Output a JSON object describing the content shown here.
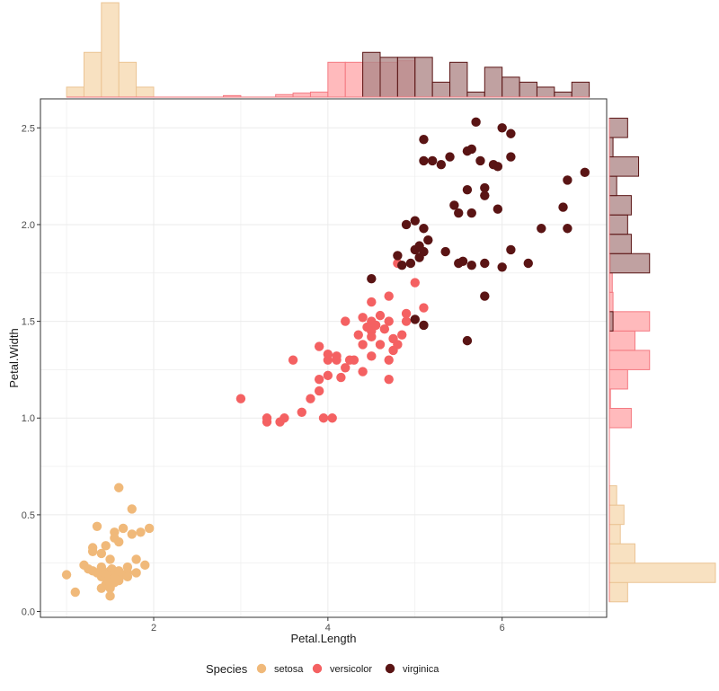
{
  "chart_data": {
    "type": "scatter",
    "title": "",
    "xlabel": "Petal.Length",
    "ylabel": "Petal.Width",
    "xlim": [
      0.7,
      7.2
    ],
    "ylim": [
      -0.03,
      2.65
    ],
    "x_ticks": [
      2,
      4,
      6
    ],
    "y_ticks": [
      0.0,
      0.5,
      1.0,
      1.5,
      2.0,
      2.5
    ],
    "x_tick_labels": [
      "2",
      "4",
      "6"
    ],
    "y_tick_labels": [
      "0.0",
      "0.5",
      "1.0",
      "1.5",
      "2.0",
      "2.5"
    ],
    "grid": true,
    "legend": {
      "title": "Species",
      "position": "bottom",
      "entries": [
        "setosa",
        "versicolor",
        "virginica"
      ]
    },
    "colors": {
      "setosa": "#F0B97A",
      "versicolor": "#F46162",
      "virginica": "#5A1414",
      "setosa_hist_fill": "#F8DFBE",
      "setosa_hist_edge": "#EBC494",
      "versicolor_hist_fill": "#FFB2B5",
      "versicolor_hist_edge": "#F47A82",
      "virginica_hist_fill": "#B08A8A",
      "virginica_hist_edge": "#5A1414"
    },
    "series": [
      {
        "name": "setosa",
        "points": [
          [
            1.0,
            0.19
          ],
          [
            1.1,
            0.1
          ],
          [
            1.2,
            0.24
          ],
          [
            1.25,
            0.22
          ],
          [
            1.3,
            0.21
          ],
          [
            1.3,
            0.33
          ],
          [
            1.3,
            0.31
          ],
          [
            1.35,
            0.44
          ],
          [
            1.35,
            0.2
          ],
          [
            1.4,
            0.3
          ],
          [
            1.4,
            0.22
          ],
          [
            1.4,
            0.18
          ],
          [
            1.4,
            0.12
          ],
          [
            1.4,
            0.23
          ],
          [
            1.45,
            0.34
          ],
          [
            1.45,
            0.18
          ],
          [
            1.45,
            0.14
          ],
          [
            1.45,
            0.2
          ],
          [
            1.5,
            0.12
          ],
          [
            1.5,
            0.18
          ],
          [
            1.5,
            0.13
          ],
          [
            1.5,
            0.21
          ],
          [
            1.5,
            0.27
          ],
          [
            1.5,
            0.16
          ],
          [
            1.5,
            0.08
          ],
          [
            1.5,
            0.13
          ],
          [
            1.52,
            0.22
          ],
          [
            1.55,
            0.41
          ],
          [
            1.55,
            0.2
          ],
          [
            1.55,
            0.15
          ],
          [
            1.55,
            0.38
          ],
          [
            1.6,
            0.18
          ],
          [
            1.6,
            0.21
          ],
          [
            1.6,
            0.16
          ],
          [
            1.6,
            0.64
          ],
          [
            1.6,
            0.36
          ],
          [
            1.6,
            0.2
          ],
          [
            1.65,
            0.43
          ],
          [
            1.65,
            0.19
          ],
          [
            1.7,
            0.23
          ],
          [
            1.7,
            0.2
          ],
          [
            1.7,
            0.18
          ],
          [
            1.75,
            0.53
          ],
          [
            1.75,
            0.4
          ],
          [
            1.8,
            0.27
          ],
          [
            1.8,
            0.2
          ],
          [
            1.85,
            0.41
          ],
          [
            1.9,
            0.24
          ],
          [
            1.95,
            0.43
          ],
          [
            1.55,
            0.17
          ]
        ]
      },
      {
        "name": "versicolor",
        "points": [
          [
            3.0,
            1.1
          ],
          [
            3.3,
            0.98
          ],
          [
            3.3,
            1.0
          ],
          [
            3.45,
            0.98
          ],
          [
            3.5,
            1.0
          ],
          [
            3.6,
            1.3
          ],
          [
            3.7,
            1.03
          ],
          [
            3.8,
            1.1
          ],
          [
            3.9,
            1.14
          ],
          [
            3.9,
            1.2
          ],
          [
            3.9,
            1.37
          ],
          [
            3.95,
            1.0
          ],
          [
            4.0,
            1.22
          ],
          [
            4.0,
            1.3
          ],
          [
            4.0,
            1.33
          ],
          [
            4.05,
            1.0
          ],
          [
            4.1,
            1.3
          ],
          [
            4.1,
            1.32
          ],
          [
            4.15,
            1.21
          ],
          [
            4.2,
            1.26
          ],
          [
            4.2,
            1.5
          ],
          [
            4.25,
            1.3
          ],
          [
            4.3,
            1.3
          ],
          [
            4.35,
            1.43
          ],
          [
            4.4,
            1.24
          ],
          [
            4.4,
            1.38
          ],
          [
            4.4,
            1.52
          ],
          [
            4.5,
            1.32
          ],
          [
            4.5,
            1.45
          ],
          [
            4.5,
            1.5
          ],
          [
            4.5,
            1.6
          ],
          [
            4.5,
            1.42
          ],
          [
            4.55,
            1.48
          ],
          [
            4.6,
            1.53
          ],
          [
            4.6,
            1.38
          ],
          [
            4.65,
            1.46
          ],
          [
            4.7,
            1.3
          ],
          [
            4.7,
            1.63
          ],
          [
            4.7,
            1.2
          ],
          [
            4.7,
            1.5
          ],
          [
            4.75,
            1.35
          ],
          [
            4.75,
            1.41
          ],
          [
            4.8,
            1.38
          ],
          [
            4.8,
            1.8
          ],
          [
            4.9,
            1.5
          ],
          [
            4.9,
            1.54
          ],
          [
            5.0,
            1.7
          ],
          [
            5.1,
            1.57
          ],
          [
            4.85,
            1.43
          ],
          [
            4.45,
            1.47
          ]
        ]
      },
      {
        "name": "virginica",
        "points": [
          [
            4.5,
            1.72
          ],
          [
            4.8,
            1.84
          ],
          [
            4.85,
            1.79
          ],
          [
            4.9,
            2.0
          ],
          [
            4.95,
            1.8
          ],
          [
            5.0,
            2.02
          ],
          [
            5.0,
            1.51
          ],
          [
            5.0,
            1.87
          ],
          [
            5.05,
            1.83
          ],
          [
            5.05,
            1.89
          ],
          [
            5.1,
            2.44
          ],
          [
            5.1,
            2.33
          ],
          [
            5.1,
            1.98
          ],
          [
            5.1,
            1.48
          ],
          [
            5.1,
            1.86
          ],
          [
            5.15,
            1.92
          ],
          [
            5.2,
            2.33
          ],
          [
            5.3,
            2.31
          ],
          [
            5.35,
            1.86
          ],
          [
            5.4,
            2.35
          ],
          [
            5.45,
            2.1
          ],
          [
            5.5,
            2.06
          ],
          [
            5.5,
            1.8
          ],
          [
            5.55,
            1.81
          ],
          [
            5.6,
            2.38
          ],
          [
            5.6,
            2.18
          ],
          [
            5.6,
            1.4
          ],
          [
            5.65,
            2.39
          ],
          [
            5.65,
            2.06
          ],
          [
            5.65,
            1.79
          ],
          [
            5.7,
            2.53
          ],
          [
            5.75,
            2.33
          ],
          [
            5.8,
            2.19
          ],
          [
            5.8,
            2.15
          ],
          [
            5.8,
            1.8
          ],
          [
            5.8,
            1.63
          ],
          [
            5.9,
            2.31
          ],
          [
            5.95,
            2.08
          ],
          [
            6.0,
            2.5
          ],
          [
            6.0,
            1.78
          ],
          [
            6.1,
            2.47
          ],
          [
            6.1,
            2.35
          ],
          [
            6.1,
            1.87
          ],
          [
            6.3,
            1.8
          ],
          [
            6.45,
            1.98
          ],
          [
            6.7,
            2.09
          ],
          [
            6.75,
            2.23
          ],
          [
            6.75,
            1.98
          ],
          [
            6.95,
            2.27
          ],
          [
            5.95,
            2.3
          ]
        ]
      }
    ],
    "marginal_x_hist": {
      "bins": [
        [
          1.0,
          1.2
        ],
        [
          1.2,
          1.4
        ],
        [
          1.4,
          1.6
        ],
        [
          1.6,
          1.8
        ],
        [
          1.8,
          2.0
        ],
        [
          2.0,
          2.2
        ],
        [
          2.2,
          2.4
        ],
        [
          2.4,
          2.6
        ],
        [
          2.6,
          2.8
        ],
        [
          2.8,
          3.0
        ],
        [
          3.0,
          3.2
        ],
        [
          3.2,
          3.4
        ],
        [
          3.4,
          3.6
        ],
        [
          3.6,
          3.8
        ],
        [
          3.8,
          4.0
        ],
        [
          4.0,
          4.2
        ],
        [
          4.2,
          4.4
        ],
        [
          4.4,
          4.6
        ],
        [
          4.6,
          4.8
        ],
        [
          4.8,
          5.0
        ],
        [
          5.0,
          5.2
        ],
        [
          5.2,
          5.4
        ],
        [
          5.4,
          5.6
        ],
        [
          5.6,
          5.8
        ],
        [
          5.8,
          6.0
        ],
        [
          6.0,
          6.2
        ],
        [
          6.2,
          6.4
        ],
        [
          6.4,
          6.6
        ],
        [
          6.6,
          6.8
        ],
        [
          6.8,
          7.0
        ]
      ],
      "setosa": [
        2,
        9,
        19,
        7,
        2,
        0,
        0,
        0,
        0,
        0,
        0,
        0,
        0,
        0,
        0,
        0,
        0,
        0,
        0,
        0,
        0,
        0,
        0,
        0,
        0,
        0,
        0,
        0,
        0,
        0
      ],
      "versicolor": [
        0,
        0,
        0,
        0,
        0,
        0,
        0,
        0,
        0,
        0.3,
        0,
        0,
        0.5,
        0.8,
        1,
        7,
        7,
        7,
        7,
        7.3,
        0,
        0,
        0,
        0,
        0,
        0,
        0,
        0,
        0,
        0
      ],
      "virginica": [
        0,
        0,
        0,
        0,
        0,
        0,
        0,
        0,
        0,
        0,
        0,
        0,
        0,
        0,
        0,
        0,
        0,
        9,
        8,
        8,
        8,
        3,
        7,
        1,
        6,
        4,
        3,
        2,
        1,
        3
      ]
    },
    "marginal_y_hist": {
      "bins": [
        [
          0.05,
          0.15
        ],
        [
          0.15,
          0.25
        ],
        [
          0.25,
          0.35
        ],
        [
          0.35,
          0.45
        ],
        [
          0.45,
          0.55
        ],
        [
          0.55,
          0.65
        ],
        [
          0.65,
          0.75
        ],
        [
          0.75,
          0.85
        ],
        [
          0.85,
          0.95
        ],
        [
          0.95,
          1.05
        ],
        [
          1.05,
          1.15
        ],
        [
          1.15,
          1.25
        ],
        [
          1.25,
          1.35
        ],
        [
          1.35,
          1.45
        ],
        [
          1.45,
          1.55
        ],
        [
          1.55,
          1.65
        ],
        [
          1.65,
          1.75
        ],
        [
          1.75,
          1.85
        ],
        [
          1.85,
          1.95
        ],
        [
          1.95,
          2.05
        ],
        [
          2.05,
          2.15
        ],
        [
          2.15,
          2.25
        ],
        [
          2.25,
          2.35
        ],
        [
          2.35,
          2.45
        ],
        [
          2.45,
          2.55
        ]
      ],
      "setosa": [
        5,
        29,
        7,
        3,
        4,
        2,
        0,
        0,
        0,
        0,
        0,
        0,
        0,
        0,
        0,
        0,
        0,
        0,
        0,
        0,
        0,
        0,
        0,
        0,
        0
      ],
      "versicolor": [
        0,
        0,
        0,
        0,
        0,
        0,
        0,
        0,
        0,
        6,
        0.3,
        5,
        11,
        7,
        11,
        1,
        0.8,
        0.3,
        0,
        0,
        0,
        0,
        0,
        0,
        0
      ],
      "virginica": [
        0,
        0,
        0,
        0,
        0,
        0,
        0,
        0,
        0,
        0,
        0,
        0,
        0,
        0,
        1,
        0,
        0,
        11,
        6,
        5,
        6,
        2,
        8,
        1,
        5
      ]
    }
  }
}
